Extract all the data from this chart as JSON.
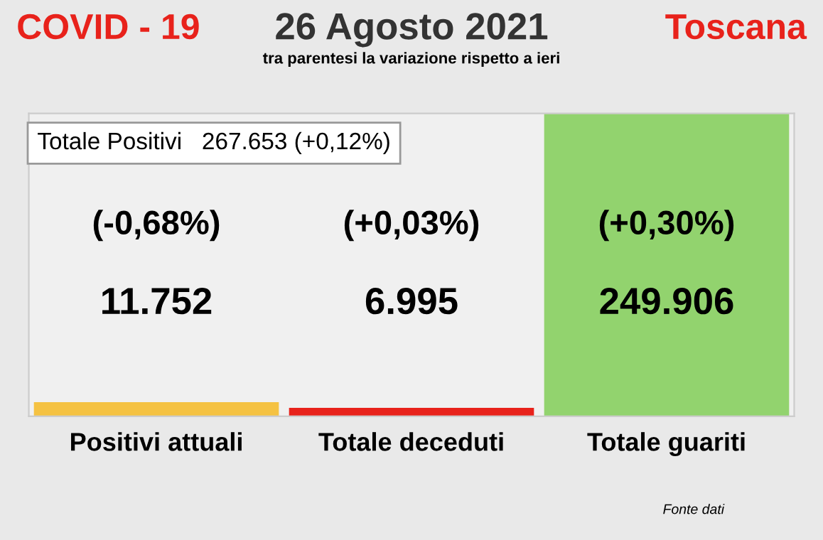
{
  "chart_data": {
    "type": "bar",
    "title": "26 Agosto 2021",
    "subtitle": "tra parentesi la variazione rispetto a ieri",
    "categories": [
      "Positivi attuali",
      "Totale deceduti",
      "Totale guariti"
    ],
    "values": [
      11752,
      6995,
      249906
    ],
    "colors": [
      "#f5c242",
      "#e8221b",
      "#92d36e"
    ],
    "value_labels": [
      "11.752",
      "6.995",
      "249.906"
    ],
    "annotations": [
      "COVID - 19",
      "Toscana",
      "Totale Positivi   267.653 (+0,12%)",
      "Fonte dati",
      "(-0,68%)",
      "(+0,03%)",
      "(+0,30%)"
    ],
    "grid": false
  }
}
